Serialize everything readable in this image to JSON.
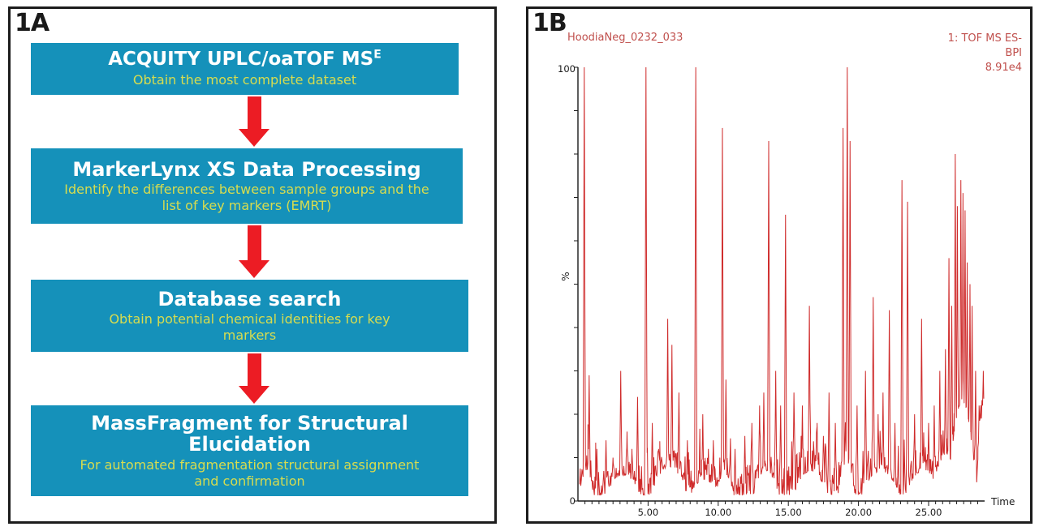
{
  "panel_a": {
    "label": "1A",
    "colors": {
      "box": "#1591ba",
      "title": "#ffffff",
      "subtitle": "#d7dc4f",
      "arrow": "#ec1c24"
    },
    "steps": [
      {
        "title": "ACQUITY UPLC/oaTOF MS",
        "title_sup": "E",
        "subtitle": "Obtain the most complete dataset"
      },
      {
        "title": "MarkerLynx XS Data Processing",
        "subtitle": "Identify the differences between sample groups and the list of key markers (EMRT)"
      },
      {
        "title": "Database search",
        "subtitle": "Obtain potential chemical identities for key markers"
      },
      {
        "title": "MassFragment for Structural Elucidation",
        "subtitle": "For automated fragmentation structural assignment and confirmation"
      }
    ]
  },
  "panel_b": {
    "label": "1B",
    "sample_name": "HoodiaNeg_0232_033",
    "annotation_lines": {
      "line1": "1: TOF MS ES-",
      "line2": "BPI",
      "line3": "8.91e4"
    },
    "colors": {
      "trace": "#cf2b2b",
      "text": "#c0504d"
    }
  },
  "chart_data": {
    "type": "line",
    "title": "HoodiaNeg_0232_033",
    "annotation": "1: TOF MS ES- BPI 8.91e4",
    "xlabel": "Time",
    "ylabel": "%",
    "xlim": [
      0,
      29
    ],
    "ylim": [
      0,
      100
    ],
    "x_ticks": [
      5,
      10,
      15,
      20,
      25
    ],
    "x_tick_labels": [
      "5.00",
      "10.00",
      "15.00",
      "20.00",
      "25.00"
    ],
    "y_tick_labels": {
      "top": "100",
      "bottom": "0"
    },
    "grid": false,
    "legend": false,
    "description": "UPLC base peak intensity chromatogram; sharp peaks over dense low-level noise",
    "peaks": [
      [
        0.45,
        100
      ],
      [
        0.8,
        29
      ],
      [
        1.35,
        12
      ],
      [
        2.0,
        14
      ],
      [
        2.5,
        10
      ],
      [
        3.05,
        30
      ],
      [
        3.5,
        16
      ],
      [
        3.85,
        12
      ],
      [
        4.25,
        24
      ],
      [
        4.85,
        100
      ],
      [
        5.3,
        18
      ],
      [
        5.75,
        12
      ],
      [
        6.4,
        42
      ],
      [
        6.7,
        36
      ],
      [
        7.2,
        25
      ],
      [
        7.8,
        14
      ],
      [
        8.4,
        100
      ],
      [
        8.9,
        20
      ],
      [
        9.3,
        12
      ],
      [
        9.65,
        14
      ],
      [
        10.3,
        86
      ],
      [
        10.55,
        28
      ],
      [
        11.2,
        12
      ],
      [
        11.9,
        15
      ],
      [
        12.4,
        18
      ],
      [
        12.95,
        22
      ],
      [
        13.25,
        25
      ],
      [
        13.6,
        83
      ],
      [
        14.1,
        30
      ],
      [
        14.45,
        22
      ],
      [
        14.8,
        66
      ],
      [
        15.4,
        25
      ],
      [
        16.0,
        22
      ],
      [
        16.5,
        45
      ],
      [
        17.05,
        18
      ],
      [
        17.5,
        15
      ],
      [
        17.9,
        25
      ],
      [
        18.35,
        18
      ],
      [
        18.9,
        86
      ],
      [
        19.2,
        100
      ],
      [
        19.4,
        83
      ],
      [
        19.9,
        22
      ],
      [
        20.5,
        30
      ],
      [
        21.05,
        47
      ],
      [
        21.4,
        20
      ],
      [
        21.75,
        25
      ],
      [
        22.2,
        44
      ],
      [
        22.6,
        18
      ],
      [
        23.1,
        74
      ],
      [
        23.5,
        69
      ],
      [
        24.0,
        20
      ],
      [
        24.5,
        42
      ],
      [
        25.0,
        18
      ],
      [
        25.4,
        22
      ],
      [
        25.8,
        30
      ],
      [
        26.2,
        35
      ],
      [
        26.45,
        56
      ],
      [
        26.65,
        45
      ],
      [
        26.9,
        80
      ],
      [
        27.05,
        68
      ],
      [
        27.3,
        74
      ],
      [
        27.45,
        71
      ],
      [
        27.6,
        67
      ],
      [
        27.75,
        55
      ],
      [
        27.95,
        50
      ],
      [
        28.1,
        45
      ],
      [
        28.35,
        30
      ],
      [
        28.6,
        22
      ],
      [
        28.9,
        30,
        0.15
      ]
    ],
    "envelope": [
      [
        0.6,
        6,
        0.5
      ],
      [
        3.2,
        5,
        1.2
      ],
      [
        6.5,
        7,
        1.3
      ],
      [
        9.0,
        4,
        1.0
      ],
      [
        10.45,
        5,
        0.7
      ],
      [
        13.4,
        6,
        0.9
      ],
      [
        16.6,
        6,
        1.2
      ],
      [
        19.15,
        8,
        0.6
      ],
      [
        21.6,
        6,
        1.4
      ],
      [
        24.6,
        6,
        1.3
      ],
      [
        26.2,
        10,
        0.8
      ],
      [
        27.4,
        22,
        1.0
      ],
      [
        28.8,
        18,
        0.4
      ]
    ]
  }
}
